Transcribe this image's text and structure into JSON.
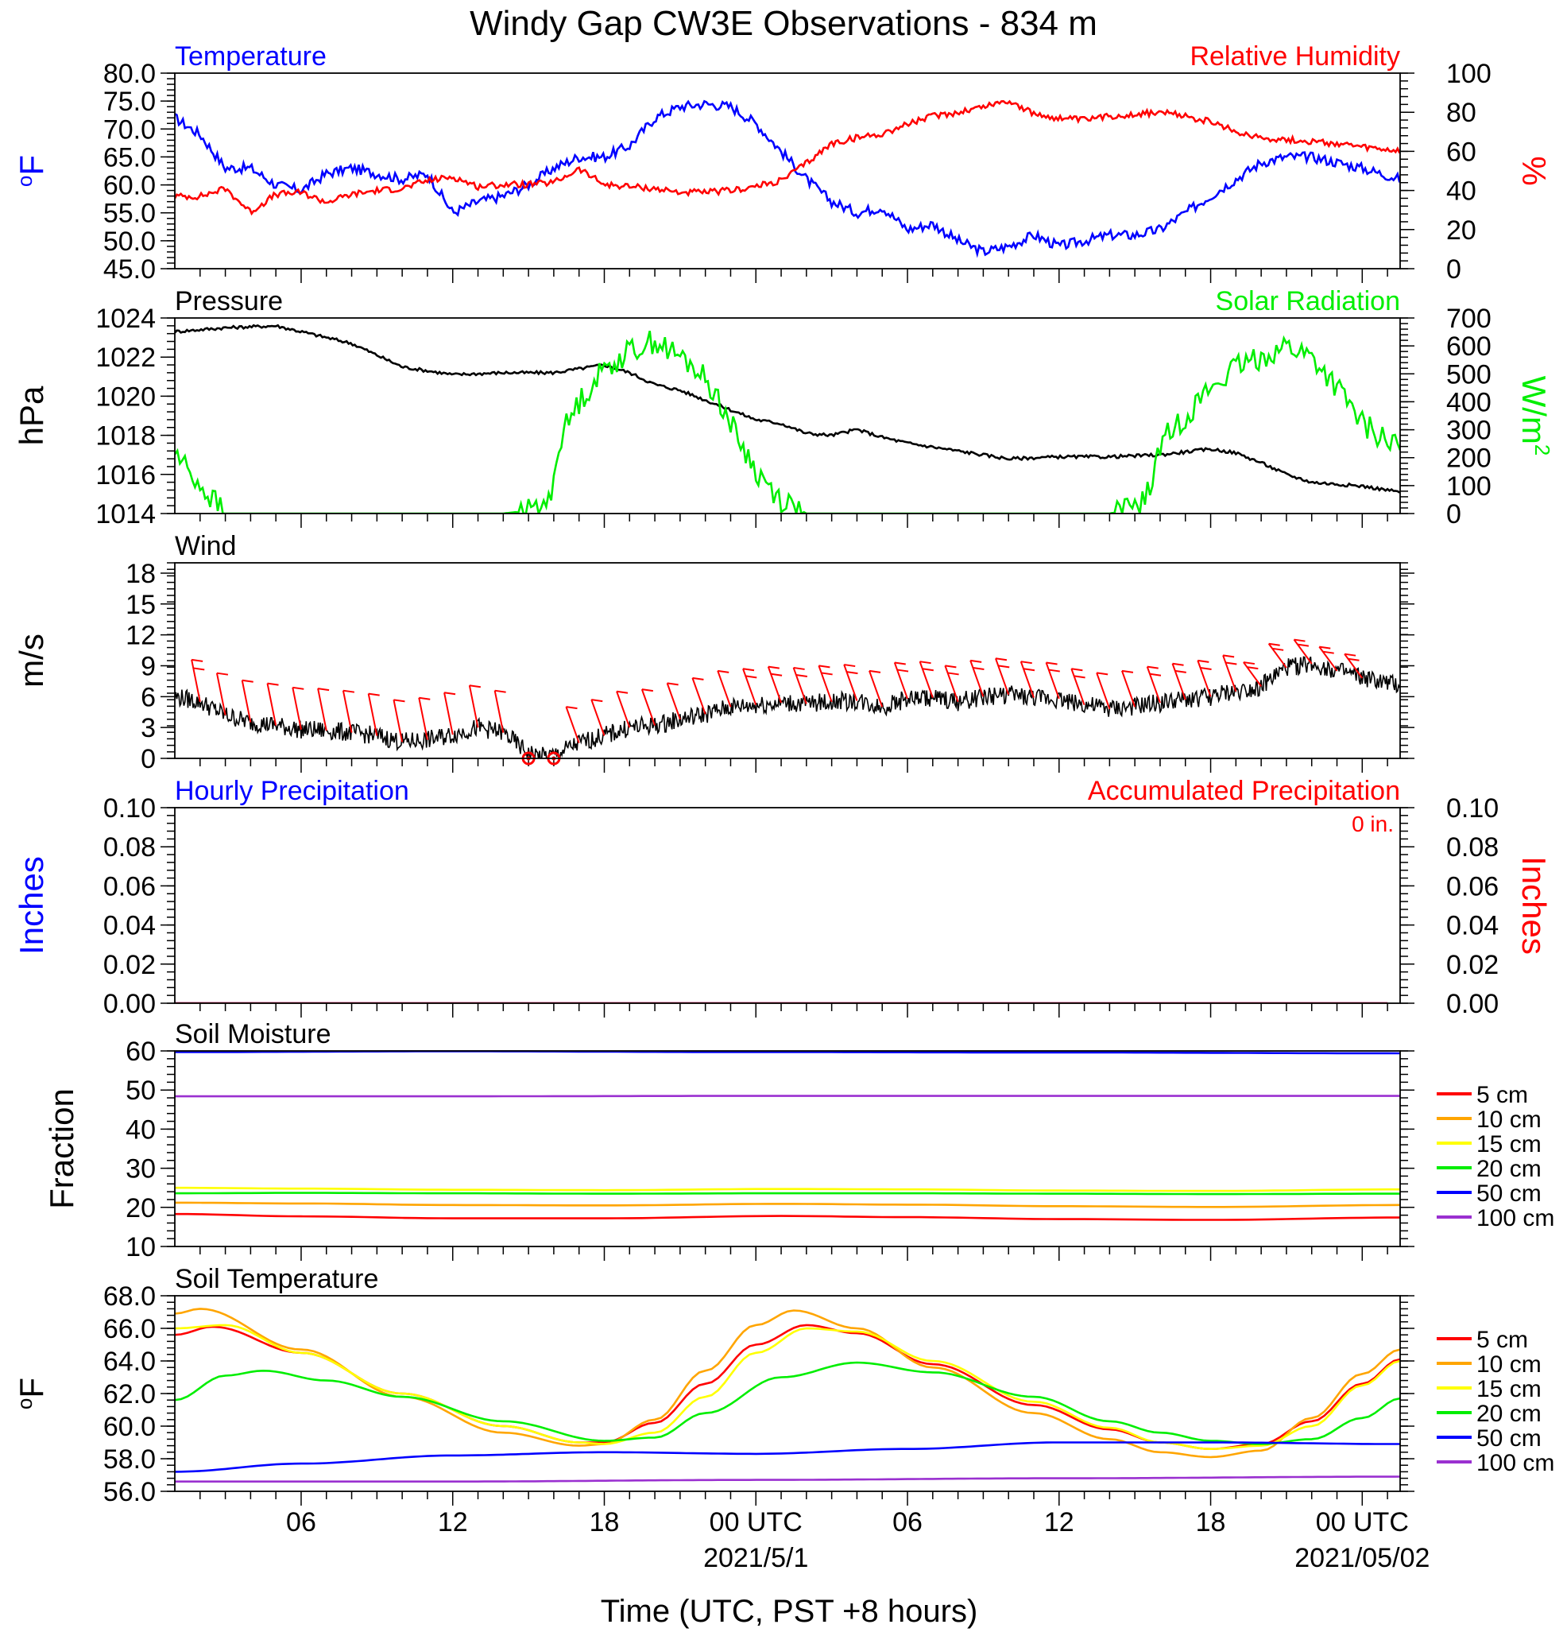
{
  "title": "Windy Gap CW3E Observations - 834 m",
  "x_axis": {
    "title": "Time (UTC, PST +8 hours)",
    "ticks": [
      {
        "label": "06",
        "h": 6
      },
      {
        "label": "12",
        "h": 12
      },
      {
        "label": "18",
        "h": 18
      },
      {
        "label": "00 UTC",
        "h": 24
      },
      {
        "label": "06",
        "h": 30
      },
      {
        "label": "12",
        "h": 36
      },
      {
        "label": "18",
        "h": 42
      },
      {
        "label": "00 UTC",
        "h": 48
      }
    ],
    "date_labels": [
      {
        "label": "2021/5/1",
        "h": 24
      },
      {
        "label": "2021/05/02",
        "h": 48
      }
    ],
    "range_hours_utc": [
      1,
      49.5
    ]
  },
  "chart_data": [
    {
      "type": "line",
      "panel": "temperature-humidity",
      "left_title": "Temperature",
      "right_title": "Relative Humidity",
      "left_axis_label": "oF",
      "right_axis_label": "%",
      "left_ylim": [
        45,
        80
      ],
      "left_ticks": [
        "45.0",
        "50.0",
        "55.0",
        "60.0",
        "65.0",
        "70.0",
        "75.0",
        "80.0"
      ],
      "right_ylim": [
        0,
        100
      ],
      "right_ticks": [
        "0",
        "20",
        "40",
        "60",
        "80",
        "100"
      ],
      "series": [
        {
          "axis": "left",
          "color": "#0000ff",
          "x": [
            1,
            2,
            3,
            4,
            5,
            6,
            7,
            8,
            9,
            10,
            11,
            12,
            13,
            14,
            15,
            16,
            17,
            18,
            19,
            20,
            21,
            22,
            23,
            24,
            25,
            26,
            27,
            28,
            29,
            30,
            31,
            32,
            33,
            34,
            35,
            36,
            37,
            38,
            39,
            40,
            41,
            42,
            43,
            44,
            45,
            46,
            47,
            48,
            49.5
          ],
          "y": [
            72,
            69,
            63,
            63,
            60,
            59,
            62,
            63,
            62,
            61,
            62,
            55,
            57,
            58,
            60,
            63,
            65,
            65,
            67,
            72,
            74,
            74.5,
            74,
            71,
            66,
            61,
            57,
            55,
            56,
            52,
            53,
            50,
            48,
            49,
            51,
            49,
            50,
            51,
            51,
            52,
            55,
            58,
            61,
            64,
            65,
            65,
            64,
            63,
            61
          ]
        },
        {
          "axis": "right",
          "color": "#ff0000",
          "x": [
            1,
            2,
            3,
            4,
            5,
            6,
            7,
            8,
            9,
            10,
            11,
            12,
            13,
            14,
            15,
            16,
            17,
            18,
            19,
            20,
            21,
            22,
            23,
            24,
            25,
            26,
            27,
            28,
            29,
            30,
            31,
            32,
            33,
            34,
            35,
            36,
            37,
            38,
            39,
            40,
            41,
            42,
            43,
            44,
            45,
            46,
            47,
            48,
            49.5
          ],
          "y": [
            37,
            37,
            41,
            29,
            38,
            39,
            34,
            38,
            40,
            41,
            45,
            47,
            42,
            43,
            43,
            44,
            51,
            43,
            42,
            41,
            39,
            39,
            40,
            42,
            45,
            54,
            64,
            67,
            69,
            74,
            78,
            80,
            83,
            86,
            79,
            77,
            76,
            78,
            79,
            80,
            78,
            75,
            70,
            67,
            66,
            65,
            64,
            62,
            60
          ]
        }
      ]
    },
    {
      "type": "line",
      "panel": "pressure-solar",
      "left_title": "Pressure",
      "right_title": "Solar Radiation",
      "left_axis_label": "hPa",
      "right_axis_label": "W/m2",
      "left_ylim": [
        1014,
        1024
      ],
      "left_ticks": [
        "1014",
        "1016",
        "1018",
        "1020",
        "1022",
        "1024"
      ],
      "right_ylim": [
        0,
        700
      ],
      "right_ticks": [
        "0",
        "100",
        "200",
        "300",
        "400",
        "500",
        "600",
        "700"
      ],
      "series": [
        {
          "axis": "left",
          "color": "#000000",
          "x": [
            1,
            3,
            5,
            6,
            8,
            10,
            12,
            14,
            16,
            17,
            18,
            19,
            20,
            21,
            22,
            23,
            24,
            25,
            26,
            27,
            28,
            29,
            30,
            32,
            34,
            36,
            38,
            40,
            42,
            43,
            44,
            45,
            46,
            47,
            48,
            49.5
          ],
          "y": [
            1023.3,
            1023.5,
            1023.6,
            1023.3,
            1022.7,
            1021.5,
            1021.1,
            1021.2,
            1021.2,
            1021.4,
            1021.6,
            1021.2,
            1020.6,
            1020.3,
            1019.8,
            1019.3,
            1018.8,
            1018.6,
            1018.1,
            1018.0,
            1018.3,
            1017.9,
            1017.6,
            1017.2,
            1016.8,
            1016.9,
            1016.9,
            1017.0,
            1017.3,
            1017.1,
            1016.6,
            1016.0,
            1015.6,
            1015.5,
            1015.4,
            1015.1
          ]
        },
        {
          "axis": "right",
          "color": "#00ee00",
          "x": [
            1,
            1.6,
            2.1,
            2.6,
            3.0,
            4,
            6,
            10,
            14,
            15,
            15.8,
            16.3,
            17,
            18,
            19,
            19.5,
            20,
            20.6,
            21,
            21.6,
            22,
            22.6,
            23,
            24,
            25,
            26,
            27,
            36,
            38,
            39,
            39.6,
            40,
            41,
            42,
            43,
            44,
            45,
            46,
            47,
            48,
            49.5
          ],
          "y": [
            220,
            150,
            90,
            40,
            0,
            0,
            0,
            0,
            0,
            10,
            40,
            280,
            400,
            520,
            580,
            600,
            620,
            580,
            560,
            520,
            480,
            400,
            320,
            150,
            50,
            0,
            0,
            0,
            0,
            20,
            80,
            250,
            350,
            450,
            520,
            560,
            600,
            560,
            450,
            320,
            230
          ]
        }
      ]
    },
    {
      "type": "line",
      "panel": "wind",
      "left_title": "Wind",
      "left_axis_label": "m/s",
      "left_ylim": [
        0,
        19
      ],
      "left_ticks": [
        "0",
        "3",
        "6",
        "9",
        "12",
        "15",
        "18"
      ],
      "series": [
        {
          "axis": "left",
          "color": "#000000",
          "x": [
            1,
            2,
            3,
            4,
            5,
            6,
            7,
            8,
            9,
            10,
            11,
            12,
            13,
            14,
            15,
            15.5,
            16,
            17,
            18,
            19,
            20,
            21,
            22,
            23,
            24,
            25,
            26,
            27,
            28,
            29,
            30,
            31,
            32,
            33,
            34,
            35,
            36,
            37,
            38,
            39,
            40,
            41,
            42,
            43,
            44,
            45,
            46,
            47,
            48,
            49.5
          ],
          "y": [
            6,
            5.5,
            4.2,
            3.5,
            3.2,
            2.8,
            2.7,
            2.5,
            2.2,
            1.6,
            1.8,
            2.3,
            3.0,
            2.5,
            0.5,
            0.2,
            0.3,
            1.5,
            2.2,
            3.0,
            3.2,
            3.8,
            4.3,
            5.0,
            5.2,
            5.4,
            5.3,
            5.5,
            5.6,
            5.0,
            5.8,
            5.9,
            5.5,
            6.0,
            6.2,
            5.9,
            5.8,
            5.2,
            4.8,
            5.0,
            5.4,
            5.7,
            6.0,
            6.5,
            7.0,
            8.8,
            9.2,
            8.5,
            7.8,
            7.0
          ]
        }
      ],
      "barbs": {
        "color": "#ff0000",
        "hours": [
          2,
          3,
          4,
          5,
          6,
          7,
          8,
          9,
          10,
          11,
          12,
          13,
          14,
          15,
          16,
          17,
          18,
          19,
          20,
          21,
          22,
          23,
          24,
          25,
          26,
          27,
          28,
          29,
          30,
          31,
          32,
          33,
          34,
          35,
          36,
          37,
          38,
          39,
          40,
          41,
          42,
          43,
          44,
          45,
          46,
          47,
          48
        ],
        "calm_hours": [
          15,
          16
        ]
      }
    },
    {
      "type": "line",
      "panel": "precipitation",
      "left_title": "Hourly Precipitation",
      "right_title": "Accumulated Precipitation",
      "left_axis_label": "Inches",
      "right_axis_label": "Inches",
      "annotation": "0 in.",
      "left_ylim": [
        0,
        0.1
      ],
      "left_ticks": [
        "0.00",
        "0.02",
        "0.04",
        "0.06",
        "0.08",
        "0.10"
      ],
      "right_ylim": [
        0,
        0.1
      ],
      "right_ticks": [
        "0.00",
        "0.02",
        "0.04",
        "0.06",
        "0.08",
        "0.10"
      ],
      "series": [
        {
          "axis": "left",
          "color": "#0000ff",
          "x": [
            1,
            49.5
          ],
          "y": [
            0,
            0
          ]
        },
        {
          "axis": "right",
          "color": "#ff0000",
          "x": [
            1,
            49.5
          ],
          "y": [
            0,
            0
          ]
        }
      ]
    },
    {
      "type": "line",
      "panel": "soil-moisture",
      "left_title": "Soil Moisture",
      "left_axis_label": "Fraction",
      "left_ylim": [
        10,
        60
      ],
      "left_ticks": [
        "10",
        "20",
        "30",
        "40",
        "50",
        "60"
      ],
      "series": [
        {
          "name": "5 cm",
          "color": "#ff0000",
          "x": [
            1,
            6,
            12,
            18,
            25,
            30,
            36,
            42,
            49.5
          ],
          "y": [
            18.3,
            17.7,
            17.2,
            17.2,
            17.8,
            17.5,
            17.0,
            16.8,
            17.4
          ]
        },
        {
          "name": "10 cm",
          "color": "#ffa500",
          "x": [
            1,
            6,
            12,
            18,
            25,
            30,
            36,
            42,
            49.5
          ],
          "y": [
            21.2,
            21.0,
            20.6,
            20.5,
            20.9,
            20.7,
            20.3,
            20.1,
            20.6
          ]
        },
        {
          "name": "15 cm",
          "color": "#ffff00",
          "x": [
            1,
            6,
            12,
            18,
            25,
            30,
            36,
            42,
            49.5
          ],
          "y": [
            25.0,
            24.8,
            24.5,
            24.4,
            24.7,
            24.6,
            24.3,
            24.2,
            24.6
          ]
        },
        {
          "name": "20 cm",
          "color": "#00ee00",
          "x": [
            1,
            6,
            12,
            18,
            25,
            30,
            36,
            42,
            49.5
          ],
          "y": [
            23.6,
            23.7,
            23.6,
            23.5,
            23.6,
            23.6,
            23.5,
            23.4,
            23.5
          ]
        },
        {
          "name": "50 cm",
          "color": "#0000ff",
          "x": [
            1,
            12,
            24,
            36,
            49.5
          ],
          "y": [
            59.7,
            59.9,
            59.7,
            59.6,
            59.4
          ]
        },
        {
          "name": "100 cm",
          "color": "#9a30d0",
          "x": [
            1,
            12,
            24,
            36,
            49.5
          ],
          "y": [
            48.4,
            48.4,
            48.5,
            48.5,
            48.5
          ]
        }
      ]
    },
    {
      "type": "line",
      "panel": "soil-temperature",
      "left_title": "Soil Temperature",
      "left_axis_label": "oF",
      "left_ylim": [
        56,
        68
      ],
      "left_ticks": [
        "56.0",
        "58.0",
        "60.0",
        "62.0",
        "64.0",
        "66.0",
        "68.0"
      ],
      "series": [
        {
          "name": "5 cm",
          "color": "#ff0000",
          "x": [
            1,
            2.5,
            6,
            10,
            14,
            17,
            18,
            20,
            22,
            24,
            26,
            28,
            31,
            35,
            38,
            40,
            42,
            44,
            46,
            48,
            49.5
          ],
          "y": [
            65.6,
            66.1,
            64.5,
            62.0,
            60.0,
            59.0,
            59.0,
            60.2,
            62.6,
            65.0,
            66.2,
            65.7,
            63.8,
            61.3,
            59.8,
            59.0,
            58.6,
            58.9,
            60.3,
            62.6,
            64.1
          ]
        },
        {
          "name": "10 cm",
          "color": "#ffa500",
          "x": [
            1,
            2,
            6,
            10,
            14,
            17,
            18,
            20,
            22,
            24,
            25.5,
            28,
            31,
            35,
            38,
            40,
            42,
            44,
            46,
            48,
            49.5
          ],
          "y": [
            66.9,
            67.2,
            64.7,
            61.8,
            59.6,
            58.8,
            58.9,
            60.4,
            63.4,
            66.2,
            67.1,
            66.0,
            63.6,
            60.8,
            59.2,
            58.4,
            58.1,
            58.5,
            60.5,
            63.2,
            64.7
          ]
        },
        {
          "name": "15 cm",
          "color": "#ffff00",
          "x": [
            1,
            3,
            6,
            10,
            14,
            17,
            18,
            20,
            22,
            24,
            26,
            28,
            31,
            35,
            38,
            40,
            42,
            44,
            46,
            48,
            49.5
          ],
          "y": [
            66.0,
            66.2,
            64.5,
            62.0,
            60.0,
            59.0,
            58.9,
            59.6,
            61.8,
            64.5,
            66.0,
            65.8,
            64.0,
            61.5,
            59.9,
            59.0,
            58.6,
            58.8,
            60.0,
            62.5,
            64.0
          ]
        },
        {
          "name": "20 cm",
          "color": "#00ee00",
          "x": [
            1,
            3,
            4.5,
            7,
            10,
            14,
            18,
            20,
            22,
            25,
            28,
            31,
            35,
            38,
            40,
            42,
            44,
            46,
            48,
            49.5
          ],
          "y": [
            61.6,
            63.1,
            63.4,
            62.8,
            61.8,
            60.3,
            59.1,
            59.3,
            60.8,
            63.0,
            63.9,
            63.3,
            61.8,
            60.3,
            59.6,
            59.1,
            58.9,
            59.2,
            60.5,
            61.7
          ]
        },
        {
          "name": "50 cm",
          "color": "#0000ff",
          "x": [
            1,
            6,
            12,
            18,
            24,
            30,
            36,
            42,
            49.5
          ],
          "y": [
            57.2,
            57.7,
            58.2,
            58.4,
            58.3,
            58.6,
            59.0,
            59.0,
            58.9
          ]
        },
        {
          "name": "100 cm",
          "color": "#9a30d0",
          "x": [
            1,
            12,
            24,
            36,
            49.5
          ],
          "y": [
            56.6,
            56.6,
            56.7,
            56.8,
            56.9
          ]
        }
      ]
    }
  ]
}
